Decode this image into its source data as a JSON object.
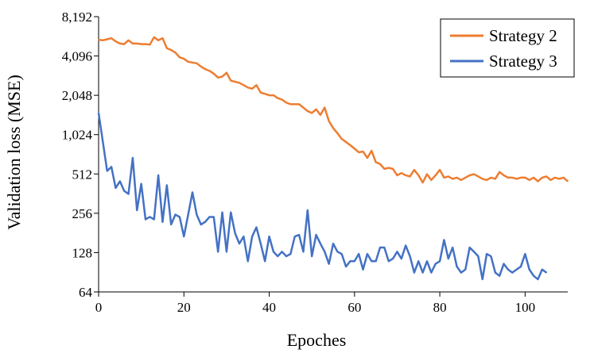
{
  "chart_data": {
    "type": "line",
    "xlabel": "Epoches",
    "ylabel": "Validation loss (MSE)",
    "xlim": [
      0,
      110
    ],
    "ylim": [
      64,
      8192
    ],
    "yscale": "log2",
    "xticks": [
      "0",
      "20",
      "40",
      "60",
      "80",
      "100"
    ],
    "yticks": [
      "64",
      "128",
      "256",
      "512",
      "1,024",
      "2,048",
      "4,096",
      "8,192"
    ],
    "grid": false,
    "legend_position": "top-right",
    "series": [
      {
        "name": "Strategy 2",
        "color": "#ED7D31",
        "x": [
          0,
          1,
          2,
          3,
          4,
          5,
          6,
          7,
          8,
          9,
          10,
          11,
          12,
          13,
          14,
          15,
          16,
          17,
          18,
          19,
          20,
          21,
          22,
          23,
          24,
          25,
          26,
          27,
          28,
          29,
          30,
          31,
          32,
          33,
          34,
          35,
          36,
          37,
          38,
          39,
          40,
          41,
          42,
          43,
          44,
          45,
          46,
          47,
          48,
          49,
          50,
          51,
          52,
          53,
          54,
          55,
          56,
          57,
          58,
          59,
          60,
          61,
          62,
          63,
          64,
          65,
          66,
          67,
          68,
          69,
          70,
          71,
          72,
          73,
          74,
          75,
          76,
          77,
          78,
          79,
          80,
          81,
          82,
          83,
          84,
          85,
          86,
          87,
          88,
          89,
          90,
          91,
          92,
          93,
          94,
          95,
          96,
          97,
          98,
          99,
          100,
          101,
          102,
          103,
          104,
          105,
          106,
          107,
          108,
          109,
          110
        ],
        "values": [
          5450,
          5400,
          5500,
          5600,
          5300,
          5100,
          5050,
          5400,
          5100,
          5100,
          5050,
          5050,
          5000,
          5700,
          5400,
          5600,
          4700,
          4550,
          4350,
          4000,
          3900,
          3700,
          3650,
          3600,
          3400,
          3250,
          3150,
          3000,
          2800,
          2850,
          3050,
          2650,
          2600,
          2550,
          2450,
          2350,
          2300,
          2450,
          2150,
          2100,
          2050,
          2050,
          1950,
          1900,
          1800,
          1750,
          1750,
          1750,
          1650,
          1550,
          1500,
          1600,
          1450,
          1650,
          1300,
          1150,
          1050,
          950,
          900,
          850,
          800,
          750,
          760,
          680,
          770,
          630,
          610,
          560,
          570,
          560,
          500,
          520,
          500,
          490,
          550,
          500,
          440,
          510,
          460,
          500,
          550,
          480,
          490,
          470,
          480,
          460,
          480,
          500,
          510,
          490,
          470,
          460,
          480,
          470,
          530,
          500,
          480,
          480,
          470,
          480,
          480,
          460,
          480,
          450,
          480,
          490,
          460,
          480,
          470,
          480,
          450
        ]
      },
      {
        "name": "Strategy 3",
        "color": "#4472C4",
        "x": [
          0,
          1,
          2,
          3,
          4,
          5,
          6,
          7,
          8,
          9,
          10,
          11,
          12,
          13,
          14,
          15,
          16,
          17,
          18,
          19,
          20,
          21,
          22,
          23,
          24,
          25,
          26,
          27,
          28,
          29,
          30,
          31,
          32,
          33,
          34,
          35,
          36,
          37,
          38,
          39,
          40,
          41,
          42,
          43,
          44,
          45,
          46,
          47,
          48,
          49,
          50,
          51,
          52,
          53,
          54,
          55,
          56,
          57,
          58,
          59,
          60,
          61,
          62,
          63,
          64,
          65,
          66,
          67,
          68,
          69,
          70,
          71,
          72,
          73,
          74,
          75,
          76,
          77,
          78,
          79,
          80,
          81,
          82,
          83,
          84,
          85,
          86,
          87,
          88,
          89,
          90,
          91,
          92,
          93,
          94,
          95,
          96,
          97,
          98,
          99,
          100,
          101,
          102,
          103,
          104,
          105
        ],
        "values": [
          1500,
          900,
          540,
          580,
          400,
          450,
          380,
          360,
          680,
          270,
          430,
          230,
          240,
          230,
          500,
          220,
          420,
          210,
          250,
          240,
          170,
          250,
          370,
          250,
          210,
          220,
          240,
          240,
          130,
          260,
          130,
          260,
          180,
          150,
          170,
          110,
          170,
          200,
          150,
          110,
          170,
          130,
          120,
          130,
          120,
          125,
          170,
          175,
          130,
          270,
          120,
          175,
          150,
          130,
          105,
          150,
          130,
          125,
          100,
          110,
          110,
          125,
          95,
          125,
          110,
          110,
          140,
          140,
          110,
          115,
          130,
          115,
          145,
          120,
          90,
          110,
          90,
          110,
          90,
          105,
          110,
          160,
          115,
          140,
          100,
          90,
          95,
          140,
          130,
          120,
          80,
          125,
          120,
          90,
          85,
          105,
          95,
          90,
          95,
          100,
          125,
          95,
          85,
          80,
          95,
          90
        ]
      }
    ]
  }
}
